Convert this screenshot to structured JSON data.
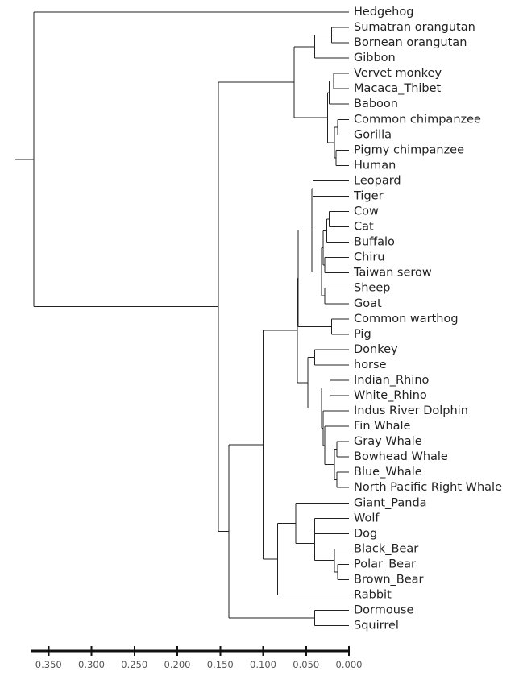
{
  "chart_data": {
    "type": "dendrogram",
    "title": "",
    "xlabel": "",
    "ylabel": "",
    "orientation": "left",
    "xlim": [
      0.0,
      0.37
    ],
    "ticks": [
      {
        "value": 0.35,
        "label": "0.350"
      },
      {
        "value": 0.3,
        "label": "0.300"
      },
      {
        "value": 0.25,
        "label": "0.250"
      },
      {
        "value": 0.2,
        "label": "0.200"
      },
      {
        "value": 0.15,
        "label": "0.150"
      },
      {
        "value": 0.1,
        "label": "0.100"
      },
      {
        "value": 0.05,
        "label": "0.050"
      },
      {
        "value": 0.0,
        "label": "0.000"
      }
    ],
    "leaves": [
      "Hedgehog",
      "Sumatran orangutan",
      "Bornean orangutan",
      "Gibbon",
      "Vervet monkey",
      "Macaca_Thibet",
      "Baboon",
      "Common chimpanzee",
      "Gorilla",
      "Pigmy chimpanzee",
      "Human",
      "Leopard",
      "Tiger",
      "Cow",
      "Cat",
      "Buffalo",
      "Chiru",
      "Taiwan serow",
      "Sheep",
      "Goat",
      "Common warthog",
      "Pig",
      "Donkey",
      "horse",
      "Indian_Rhino",
      "White_Rhino",
      "Indus River Dolphin",
      "Fin Whale",
      "Gray Whale",
      "Bowhead Whale",
      "Blue_Whale",
      "North Pacific Right Whale",
      "Giant_Panda",
      "Wolf",
      "Dog",
      "Black_Bear",
      "Polar_Bear",
      "Brown_Bear",
      "Rabbit",
      "Dormouse",
      "Squirrel"
    ],
    "merges": [
      {
        "a": "L:1",
        "b": "L:2",
        "height": 0.02
      },
      {
        "a": "M:0",
        "b": "L:3",
        "height": 0.04
      },
      {
        "a": "L:4",
        "b": "L:5",
        "height": 0.018
      },
      {
        "a": "M:2",
        "b": "L:6",
        "height": 0.023
      },
      {
        "a": "L:7",
        "b": "L:8",
        "height": 0.013
      },
      {
        "a": "L:9",
        "b": "L:10",
        "height": 0.015
      },
      {
        "a": "M:4",
        "b": "M:5",
        "height": 0.017
      },
      {
        "a": "M:3",
        "b": "M:6",
        "height": 0.025
      },
      {
        "a": "M:1",
        "b": "M:7",
        "height": 0.064
      },
      {
        "a": "L:11",
        "b": "L:12",
        "height": 0.042
      },
      {
        "a": "L:13",
        "b": "L:14",
        "height": 0.023
      },
      {
        "a": "M:10",
        "b": "L:15",
        "height": 0.026
      },
      {
        "a": "L:16",
        "b": "L:17",
        "height": 0.028
      },
      {
        "a": "M:11",
        "b": "M:12",
        "height": 0.03
      },
      {
        "a": "L:18",
        "b": "L:19",
        "height": 0.028
      },
      {
        "a": "M:13",
        "b": "M:14",
        "height": 0.032
      },
      {
        "a": "M:9",
        "b": "M:15",
        "height": 0.043
      },
      {
        "a": "L:20",
        "b": "L:21",
        "height": 0.02
      },
      {
        "a": "M:16",
        "b": "M:17",
        "height": 0.059
      },
      {
        "a": "L:22",
        "b": "L:23",
        "height": 0.04
      },
      {
        "a": "L:24",
        "b": "L:25",
        "height": 0.022
      },
      {
        "a": "L:28",
        "b": "L:29",
        "height": 0.014
      },
      {
        "a": "L:30",
        "b": "L:31",
        "height": 0.014
      },
      {
        "a": "M:21",
        "b": "M:22",
        "height": 0.017
      },
      {
        "a": "L:27",
        "b": "M:23",
        "height": 0.028
      },
      {
        "a": "L:26",
        "b": "M:24",
        "height": 0.03
      },
      {
        "a": "M:20",
        "b": "M:25",
        "height": 0.032
      },
      {
        "a": "M:19",
        "b": "M:26",
        "height": 0.048
      },
      {
        "a": "M:18",
        "b": "M:27",
        "height": 0.06
      },
      {
        "a": "L:33",
        "b": "L:34",
        "height": 0.04
      },
      {
        "a": "L:36",
        "b": "L:37",
        "height": 0.013
      },
      {
        "a": "L:35",
        "b": "M:30",
        "height": 0.017
      },
      {
        "a": "M:29",
        "b": "M:31",
        "height": 0.04
      },
      {
        "a": "L:32",
        "b": "M:32",
        "height": 0.062
      },
      {
        "a": "M:33",
        "b": "L:38",
        "height": 0.083
      },
      {
        "a": "M:28",
        "b": "M:34",
        "height": 0.1
      },
      {
        "a": "L:39",
        "b": "L:40",
        "height": 0.04
      },
      {
        "a": "M:35",
        "b": "M:36",
        "height": 0.14
      },
      {
        "a": "M:8",
        "b": "M:37",
        "height": 0.152
      },
      {
        "a": "L:0",
        "b": "M:38",
        "height": 0.367
      }
    ],
    "grid": false,
    "legend": "none"
  }
}
